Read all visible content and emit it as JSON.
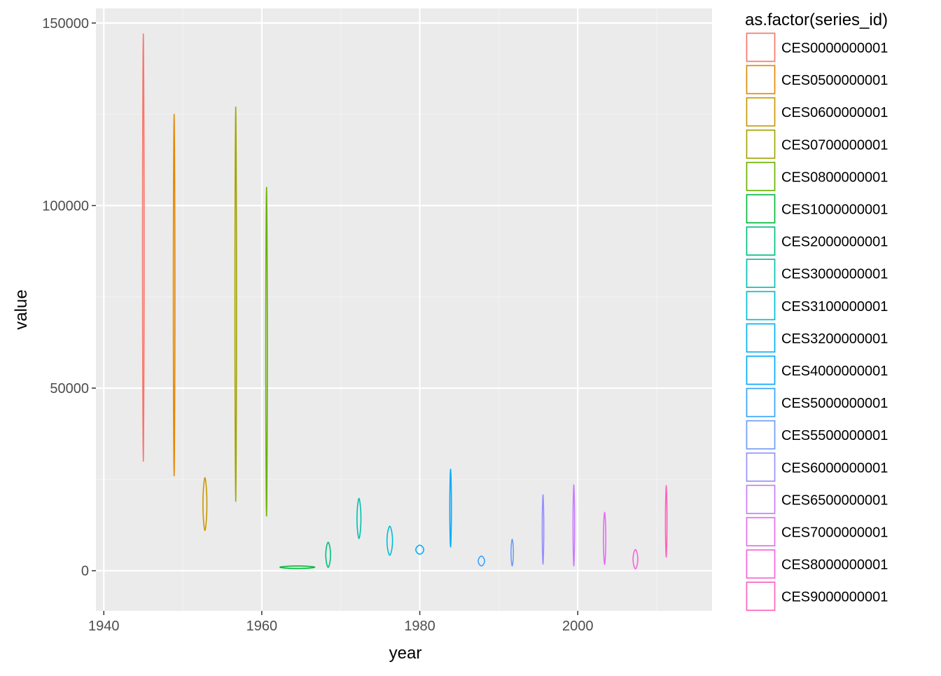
{
  "chart_data": {
    "type": "violin",
    "xlabel": "year",
    "ylabel": "value",
    "xlim": [
      1939,
      2017
    ],
    "ylim": [
      -11000,
      154000
    ],
    "x_ticks": [
      1940,
      1960,
      1980,
      2000
    ],
    "x_tick_labels": [
      "1940",
      "1960",
      "1980",
      "2000"
    ],
    "y_ticks": [
      0,
      50000,
      100000,
      150000
    ],
    "y_tick_labels": [
      "0",
      "50000",
      "100000",
      "150000"
    ],
    "grid": true,
    "legend": {
      "title": "as.factor(series_id)",
      "placement": "right"
    },
    "series": [
      {
        "name": "CES0000000001",
        "color": "#F8766D",
        "center_year": 1945.0,
        "min": 30000,
        "max": 147000,
        "max_halfwidth_years": 0.1
      },
      {
        "name": "CES0500000001",
        "color": "#E58700",
        "center_year": 1948.9,
        "min": 26000,
        "max": 125000,
        "max_halfwidth_years": 0.1
      },
      {
        "name": "CES0600000001",
        "color": "#C99800",
        "center_year": 1952.8,
        "min": 11000,
        "max": 25500,
        "max_halfwidth_years": 0.25
      },
      {
        "name": "CES0700000001",
        "color": "#A3A500",
        "center_year": 1956.7,
        "min": 19000,
        "max": 127000,
        "max_halfwidth_years": 0.1
      },
      {
        "name": "CES0800000001",
        "color": "#6BB100",
        "center_year": 1960.6,
        "min": 15000,
        "max": 105000,
        "max_halfwidth_years": 0.1
      },
      {
        "name": "CES1000000001",
        "color": "#00BA38",
        "center_year": 1964.5,
        "min": 600,
        "max": 1300,
        "max_halfwidth_years": 2.2
      },
      {
        "name": "CES2000000001",
        "color": "#00BF7D",
        "center_year": 1968.4,
        "min": 900,
        "max": 7800,
        "max_halfwidth_years": 0.3
      },
      {
        "name": "CES3000000001",
        "color": "#00C0AF",
        "center_year": 1972.3,
        "min": 8800,
        "max": 19800,
        "max_halfwidth_years": 0.25
      },
      {
        "name": "CES3100000001",
        "color": "#00BCD8",
        "center_year": 1976.2,
        "min": 4200,
        "max": 12200,
        "max_halfwidth_years": 0.35
      },
      {
        "name": "CES3200000001",
        "color": "#00B0F6",
        "center_year": 1980.0,
        "min": 4500,
        "max": 7000,
        "max_halfwidth_years": 0.5
      },
      {
        "name": "CES4000000001",
        "color": "#00A9FF",
        "center_year": 1983.9,
        "min": 6500,
        "max": 27800,
        "max_halfwidth_years": 0.1
      },
      {
        "name": "CES5000000001",
        "color": "#35A2FF",
        "center_year": 1987.8,
        "min": 1300,
        "max": 4000,
        "max_halfwidth_years": 0.4
      },
      {
        "name": "CES5500000001",
        "color": "#6F9DF5",
        "center_year": 1991.7,
        "min": 1300,
        "max": 8600,
        "max_halfwidth_years": 0.15
      },
      {
        "name": "CES6000000001",
        "color": "#9590FF",
        "center_year": 1995.6,
        "min": 1800,
        "max": 20800,
        "max_halfwidth_years": 0.1
      },
      {
        "name": "CES6500000001",
        "color": "#C77CFF",
        "center_year": 1999.5,
        "min": 1300,
        "max": 23500,
        "max_halfwidth_years": 0.1
      },
      {
        "name": "CES7000000001",
        "color": "#E76BF3",
        "center_year": 2003.4,
        "min": 1700,
        "max": 16000,
        "max_halfwidth_years": 0.15
      },
      {
        "name": "CES8000000001",
        "color": "#FA62DB",
        "center_year": 2007.3,
        "min": 500,
        "max": 5800,
        "max_halfwidth_years": 0.3
      },
      {
        "name": "CES9000000001",
        "color": "#FF62BC",
        "center_year": 2011.2,
        "min": 3700,
        "max": 23300,
        "max_halfwidth_years": 0.1
      }
    ]
  }
}
